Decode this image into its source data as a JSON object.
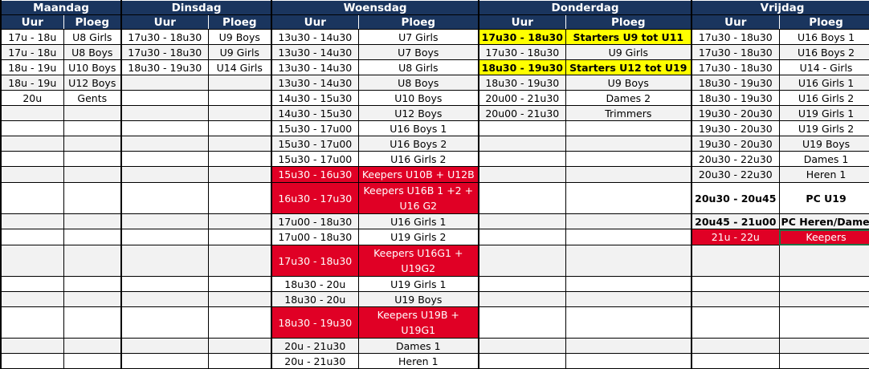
{
  "header": {
    "uur_label": "Uur",
    "ploeg_label": "Ploeg"
  },
  "colors": {
    "header_bg": "#1a355e",
    "keepers_red": "#e00025",
    "starters_yellow": "#ffff00",
    "alt_row": "#f2f2f2"
  },
  "days": [
    {
      "name": "Maandag",
      "rows": [
        {
          "uur": "17u - 18u",
          "ploeg": "U8 Girls"
        },
        {
          "uur": "17u - 18u",
          "ploeg": "U8 Boys"
        },
        {
          "uur": "18u - 19u",
          "ploeg": "U10 Boys"
        },
        {
          "uur": "18u - 19u",
          "ploeg": "U12 Boys"
        },
        {
          "uur": "20u",
          "ploeg": "Gents"
        }
      ]
    },
    {
      "name": "Dinsdag",
      "rows": [
        {
          "uur": "17u30 - 18u30",
          "ploeg": "U9 Boys"
        },
        {
          "uur": "17u30 - 18u30",
          "ploeg": "U9 Girls"
        },
        {
          "uur": "18u30 - 19u30",
          "ploeg": "U14 Girls"
        }
      ]
    },
    {
      "name": "Woensdag",
      "rows": [
        {
          "uur": "13u30 - 14u30",
          "ploeg": "U7 Girls"
        },
        {
          "uur": "13u30 - 14u30",
          "ploeg": "U7 Boys"
        },
        {
          "uur": "13u30 - 14u30",
          "ploeg": "U8 Girls"
        },
        {
          "uur": "13u30 - 14u30",
          "ploeg": "U8 Boys"
        },
        {
          "uur": "14u30 - 15u30",
          "ploeg": "U10 Boys"
        },
        {
          "uur": "14u30 - 15u30",
          "ploeg": "U12 Boys"
        },
        {
          "uur": "15u30 - 17u00",
          "ploeg": "U16 Boys 1"
        },
        {
          "uur": "15u30 - 17u00",
          "ploeg": "U16 Boys 2"
        },
        {
          "uur": "15u30 - 17u00",
          "ploeg": "U16 Girls 2"
        },
        {
          "uur": "15u30 - 16u30",
          "ploeg": "Keepers U10B + U12B",
          "style": "red"
        },
        {
          "uur": "16u30 - 17u30",
          "ploeg": "Keepers U16B 1 +2 + U16 G2",
          "style": "red"
        },
        {
          "uur": "17u00 - 18u30",
          "ploeg": "U16 Girls 1"
        },
        {
          "uur": "17u00 - 18u30",
          "ploeg": "U19 Girls 2"
        },
        {
          "uur": "17u30 - 18u30",
          "ploeg": "Keepers U16G1 + U19G2",
          "style": "red"
        },
        {
          "uur": "18u30 - 20u",
          "ploeg": "U19 Girls 1"
        },
        {
          "uur": "18u30 - 20u",
          "ploeg": "U19 Boys"
        },
        {
          "uur": "18u30 - 19u30",
          "ploeg": "Keepers  U19B + U19G1",
          "style": "red"
        },
        {
          "uur": "20u - 21u30",
          "ploeg": "Dames 1"
        },
        {
          "uur": "20u - 21u30",
          "ploeg": "Heren 1"
        }
      ]
    },
    {
      "name": "Donderdag",
      "rows": [
        {
          "uur": "17u30 - 18u30",
          "ploeg": "Starters U9 tot U11",
          "style": "yellow"
        },
        {
          "uur": "17u30 - 18u30",
          "ploeg": "U9 Girls"
        },
        {
          "uur": "18u30 - 19u30",
          "ploeg": "Starters U12 tot U19",
          "style": "yellow"
        },
        {
          "uur": "18u30 - 19u30",
          "ploeg": "U9 Boys"
        },
        {
          "uur": "20u00 - 21u30",
          "ploeg": "Dames 2"
        },
        {
          "uur": "20u00 - 21u30",
          "ploeg": "Trimmers"
        }
      ]
    },
    {
      "name": "Vrijdag",
      "rows": [
        {
          "uur": "17u30 - 18u30",
          "ploeg": "U16 Boys 1"
        },
        {
          "uur": "17u30 - 18u30",
          "ploeg": "U16 Boys 2"
        },
        {
          "uur": "17u30 - 18u30",
          "ploeg": "U14 - Girls"
        },
        {
          "uur": "18u30 - 19u30",
          "ploeg": "U16 Girls 1"
        },
        {
          "uur": "18u30 - 19u30",
          "ploeg": "U16 Girls 2"
        },
        {
          "uur": "19u30 - 20u30",
          "ploeg": "U19 Girls 1"
        },
        {
          "uur": "19u30 - 20u30",
          "ploeg": "U19 Girls 2"
        },
        {
          "uur": "19u30 - 20u30",
          "ploeg": "U19 Boys"
        },
        {
          "uur": "20u30 - 22u30",
          "ploeg": "Dames 1"
        },
        {
          "uur": "20u30 - 22u30",
          "ploeg": "Heren 1"
        },
        {
          "uur": "20u30 - 20u45",
          "ploeg": "PC U19",
          "style": "bold"
        },
        {
          "uur": "20u45 - 21u00",
          "ploeg": "PC Heren/Dames",
          "style": "bold"
        },
        {
          "uur": "21u - 22u",
          "ploeg": "Keepers",
          "style": "red",
          "selected": true
        }
      ]
    }
  ]
}
